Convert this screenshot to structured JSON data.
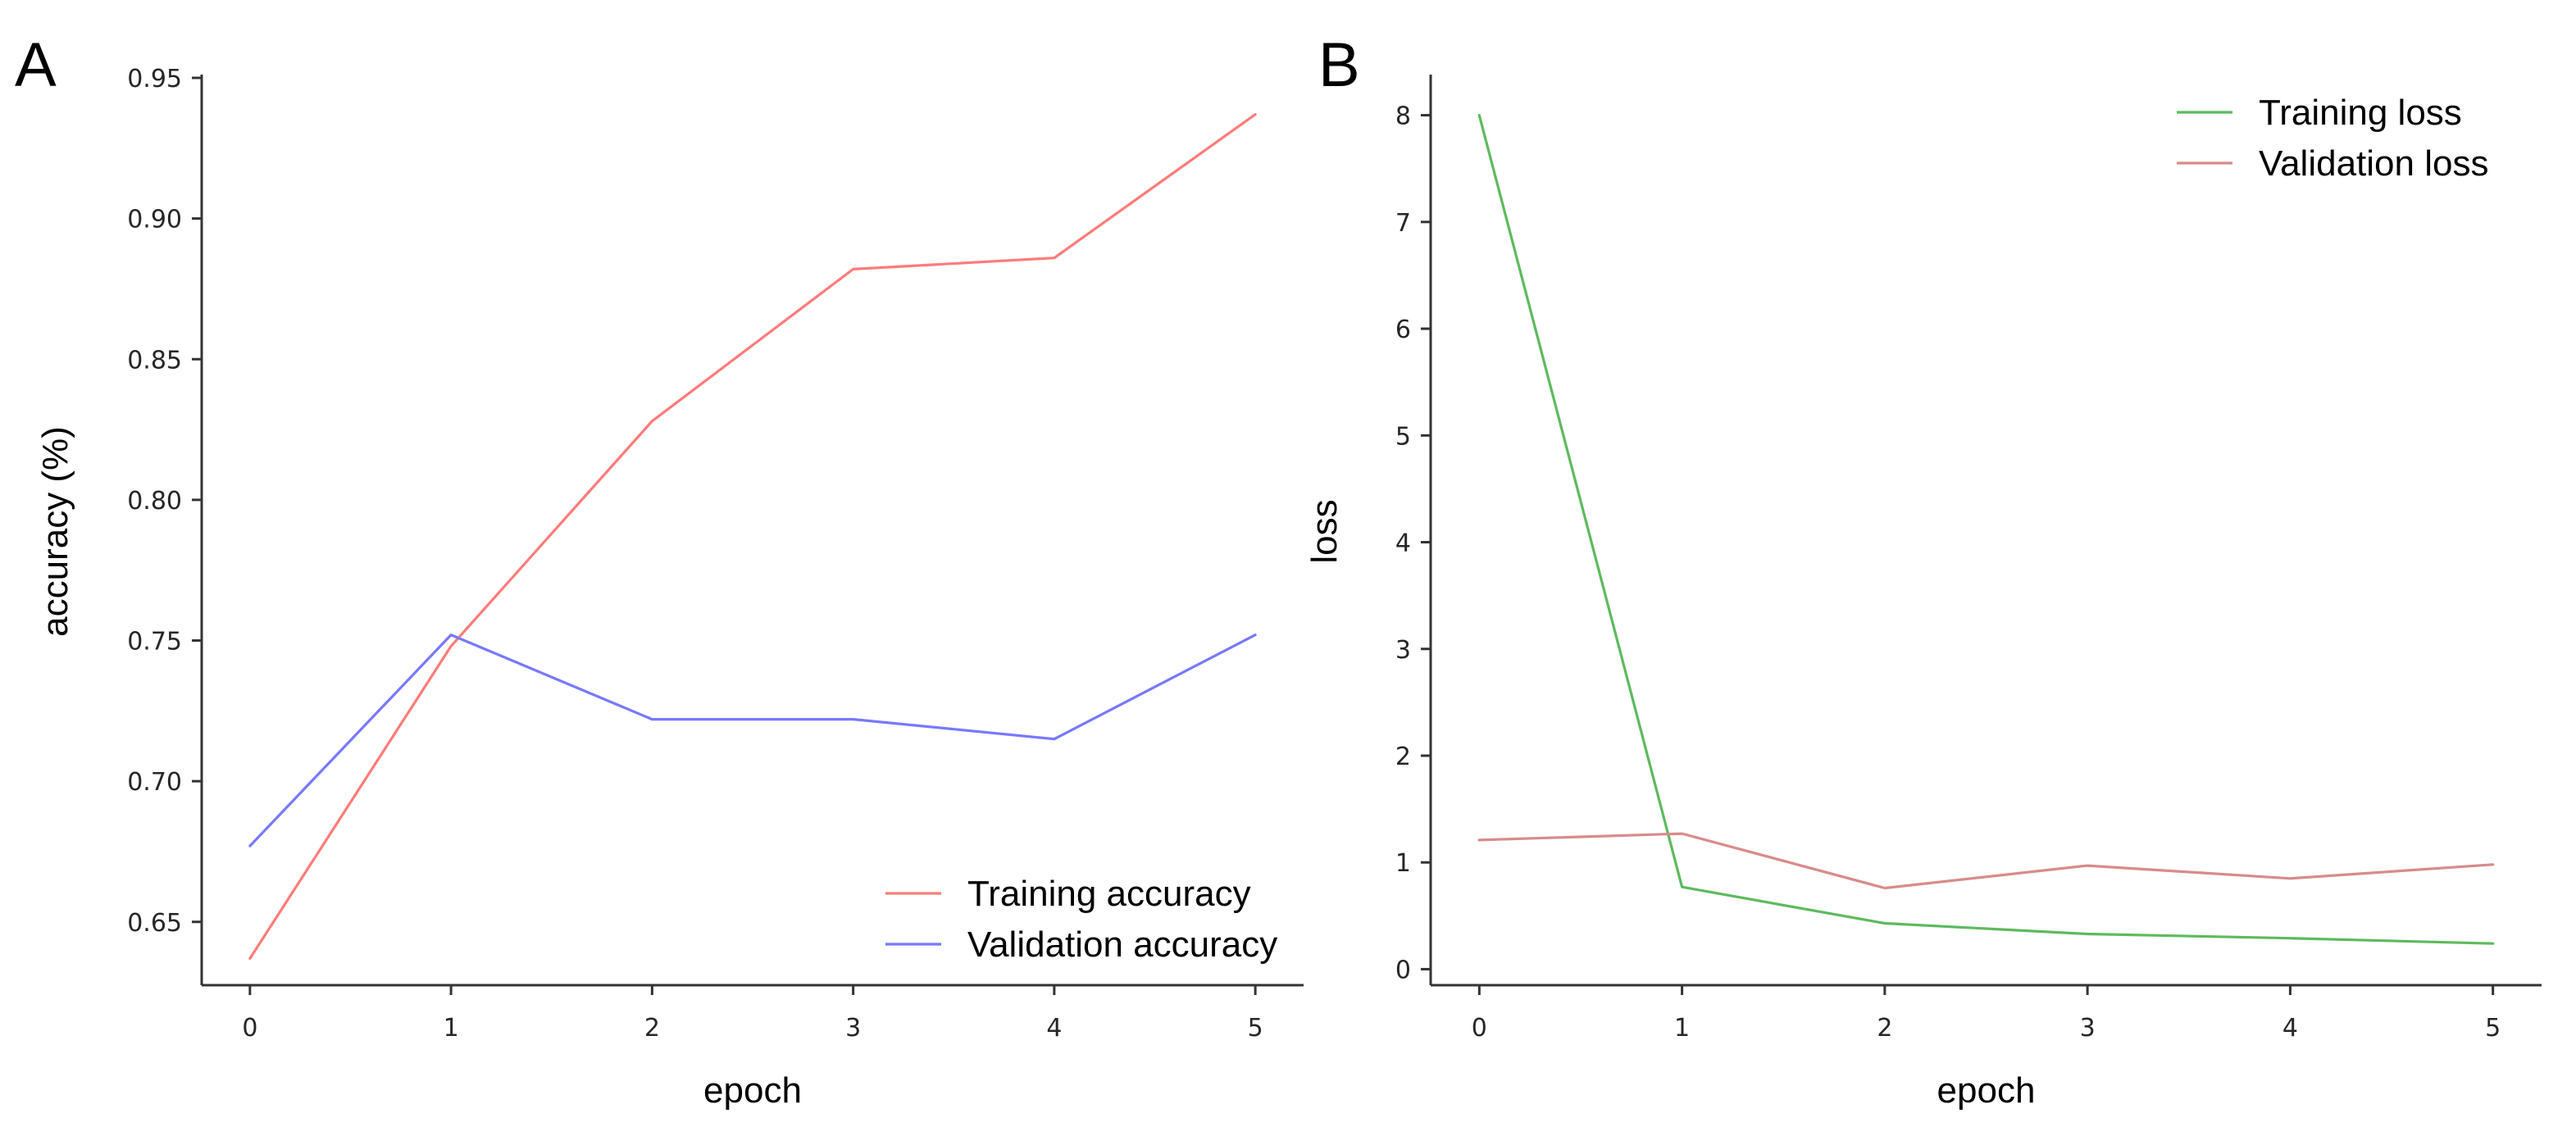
{
  "chart_data": [
    {
      "panel_label": "A",
      "type": "line",
      "title": "",
      "xlabel": "epoch",
      "ylabel": "accuracy (%)",
      "x": [
        0,
        1,
        2,
        3,
        4,
        5
      ],
      "xlim": [
        -0.24,
        5.24
      ],
      "ylim": [
        0.6275,
        0.95
      ],
      "xticks": [
        0,
        1,
        2,
        3,
        4,
        5
      ],
      "yticks": [
        0.65,
        0.7,
        0.75,
        0.8,
        0.85,
        0.9,
        0.95
      ],
      "ytick_labels": [
        "0.65",
        "0.70",
        "0.75",
        "0.80",
        "0.85",
        "0.90",
        "0.95"
      ],
      "legend_position": "bottom-right",
      "series": [
        {
          "name": "Training accuracy",
          "color": "#ff7b7b",
          "values": [
            0.637,
            0.748,
            0.828,
            0.882,
            0.886,
            0.937
          ]
        },
        {
          "name": "Validation accuracy",
          "color": "#7878ff",
          "values": [
            0.677,
            0.752,
            0.722,
            0.722,
            0.715,
            0.752
          ]
        }
      ]
    },
    {
      "panel_label": "B",
      "type": "line",
      "title": "",
      "xlabel": "epoch",
      "ylabel": "loss",
      "x": [
        0,
        1,
        2,
        3,
        4,
        5
      ],
      "xlim": [
        -0.24,
        5.24
      ],
      "ylim": [
        -0.15,
        8.35
      ],
      "xticks": [
        0,
        1,
        2,
        3,
        4,
        5
      ],
      "yticks": [
        0,
        1,
        2,
        3,
        4,
        5,
        6,
        7,
        8
      ],
      "ytick_labels": [
        "0",
        "1",
        "2",
        "3",
        "4",
        "5",
        "6",
        "7",
        "8"
      ],
      "legend_position": "top-right",
      "series": [
        {
          "name": "Training loss",
          "color": "#5dba5d",
          "values": [
            8.0,
            0.77,
            0.43,
            0.33,
            0.29,
            0.24
          ]
        },
        {
          "name": "Validation loss",
          "color": "#d98a8a",
          "values": [
            1.21,
            1.27,
            0.76,
            0.97,
            0.85,
            0.98
          ]
        }
      ]
    }
  ]
}
